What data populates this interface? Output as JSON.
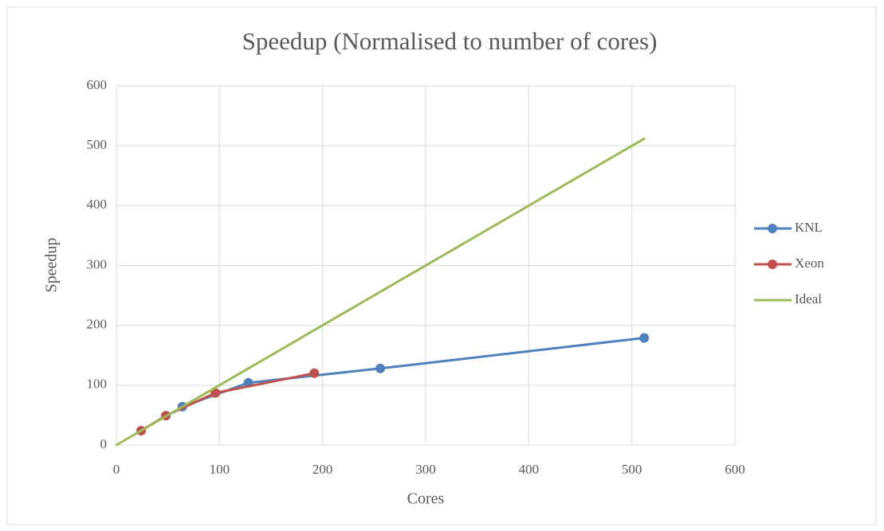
{
  "chart_data": {
    "type": "line",
    "title": "Speedup (Normalised to number of cores)",
    "x_label": "Cores",
    "y_label": "Speedup",
    "xlim": [
      0,
      600
    ],
    "xticks": [
      0,
      100,
      200,
      300,
      400,
      500,
      600
    ],
    "ylim": [
      0,
      600
    ],
    "yticks": [
      0,
      100,
      200,
      300,
      400,
      500,
      600
    ],
    "grid": true,
    "legend": "right",
    "series": [
      {
        "name": "KNL",
        "color": "#4f81bd",
        "markers": true,
        "x": [
          64,
          128,
          256,
          512
        ],
        "values": [
          64,
          104,
          128,
          179
        ]
      },
      {
        "name": "Xeon",
        "color": "#c0504d",
        "markers": true,
        "x": [
          24,
          48,
          96,
          192
        ],
        "values": [
          24,
          49,
          87,
          120
        ]
      },
      {
        "name": "Ideal",
        "color": "#9bbb59",
        "markers": false,
        "x": [
          0,
          512
        ],
        "values": [
          0,
          512
        ]
      }
    ]
  }
}
